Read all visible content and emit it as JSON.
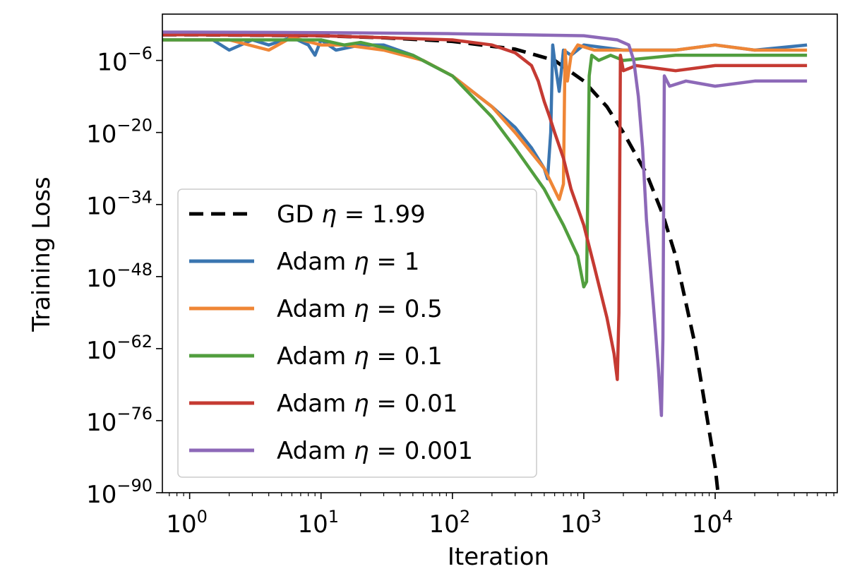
{
  "chart_data": {
    "type": "line",
    "title": "",
    "xlabel": "Iteration",
    "ylabel": "Training Loss",
    "xscale": "log",
    "yscale": "log",
    "xlim": [
      0.62,
      85000
    ],
    "ylim_exp": [
      -90,
      3
    ],
    "x_ticks": [
      {
        "value": 1,
        "base": "10",
        "exp": "0"
      },
      {
        "value": 10,
        "base": "10",
        "exp": "1"
      },
      {
        "value": 100,
        "base": "10",
        "exp": "2"
      },
      {
        "value": 1000,
        "base": "10",
        "exp": "3"
      },
      {
        "value": 10000,
        "base": "10",
        "exp": "4"
      }
    ],
    "y_ticks": [
      {
        "exp_value": -6,
        "base": "10",
        "exp": "−6"
      },
      {
        "exp_value": -20,
        "base": "10",
        "exp": "−20"
      },
      {
        "exp_value": -34,
        "base": "10",
        "exp": "−34"
      },
      {
        "exp_value": -48,
        "base": "10",
        "exp": "−48"
      },
      {
        "exp_value": -62,
        "base": "10",
        "exp": "−62"
      },
      {
        "exp_value": -76,
        "base": "10",
        "exp": "−76"
      },
      {
        "exp_value": -90,
        "base": "10",
        "exp": "−90"
      }
    ],
    "grid": false,
    "legend_position": "lower-left",
    "series": [
      {
        "key": "gd",
        "name": "GD",
        "param": "1.99",
        "color": "#000000",
        "dash": "dashed",
        "x": [
          0.62,
          1,
          10,
          30,
          100,
          300,
          600,
          1000,
          1500,
          2000,
          3000,
          4000,
          5000,
          7000,
          10000,
          10500
        ],
        "y_exp": [
          -1,
          -1,
          -1.2,
          -1.6,
          -2.3,
          -3.8,
          -6,
          -10,
          -15,
          -20,
          -28,
          -36,
          -44,
          -61,
          -85,
          -90
        ]
      },
      {
        "key": "adam1",
        "name": "Adam",
        "param": "1",
        "color": "#3a75b0",
        "dash": "solid",
        "x": [
          0.62,
          1,
          1.5,
          2,
          3,
          4,
          6,
          8,
          9,
          10,
          13,
          20,
          30,
          50,
          100,
          200,
          300,
          400,
          500,
          530,
          560,
          580,
          600,
          650,
          700,
          800,
          1000,
          2000,
          5000,
          10000,
          20000,
          50000
        ],
        "y_exp": [
          -2,
          -2,
          -2,
          -4,
          -2,
          -3,
          -1.5,
          -3,
          -5,
          -2,
          -4,
          -3,
          -3,
          -5,
          -9,
          -15,
          -19,
          -23,
          -27,
          -29,
          -20,
          -3,
          -6,
          -12,
          -4,
          -5,
          -3,
          -4,
          -4,
          -3,
          -4,
          -3
        ]
      },
      {
        "key": "adam05",
        "name": "Adam",
        "param": "0.5",
        "color": "#ef8636",
        "dash": "solid",
        "x": [
          0.62,
          1,
          2,
          4,
          6,
          10,
          15,
          30,
          60,
          100,
          200,
          300,
          500,
          650,
          700,
          720,
          750,
          800,
          900,
          1200,
          2000,
          5000,
          10000,
          20000,
          50000
        ],
        "y_exp": [
          -2,
          -2,
          -2,
          -4,
          -1.5,
          -3,
          -3,
          -4,
          -6,
          -9,
          -15,
          -20,
          -27,
          -33,
          -30,
          -4,
          -10,
          -5,
          -3,
          -4,
          -4,
          -4,
          -3,
          -4,
          -4
        ]
      },
      {
        "key": "adam01",
        "name": "Adam",
        "param": "0.1",
        "color": "#519e3e",
        "dash": "solid",
        "x": [
          0.62,
          1,
          2,
          5,
          10,
          15,
          20,
          30,
          50,
          100,
          200,
          300,
          500,
          700,
          900,
          1000,
          1050,
          1100,
          1150,
          1300,
          1600,
          2000,
          5000,
          10000,
          50000
        ],
        "y_exp": [
          -2,
          -2,
          -2,
          -2,
          -2,
          -3,
          -2.5,
          -3.5,
          -5,
          -9,
          -17,
          -23,
          -31,
          -38,
          -44,
          -50,
          -49,
          -9,
          -5,
          -6,
          -5,
          -6,
          -5,
          -5,
          -5
        ]
      },
      {
        "key": "adam001",
        "name": "Adam",
        "param": "0.01",
        "color": "#c53a32",
        "dash": "solid",
        "x": [
          0.62,
          1,
          10,
          100,
          200,
          300,
          400,
          450,
          500,
          550,
          600,
          700,
          800,
          1000,
          1200,
          1500,
          1700,
          1800,
          1850,
          1900,
          2000,
          2500,
          5000,
          10000,
          50000
        ],
        "y_exp": [
          -1,
          -1,
          -1.2,
          -2,
          -3,
          -4.5,
          -7,
          -10,
          -14,
          -17,
          -20,
          -25,
          -31,
          -38,
          -46,
          -56,
          -63,
          -68,
          -55,
          -5,
          -8,
          -7,
          -8,
          -7,
          -7
        ]
      },
      {
        "key": "adam0001",
        "name": "Adam",
        "param": "0.001",
        "color": "#8d69b8",
        "dash": "solid",
        "x": [
          0.62,
          1,
          10,
          100,
          1000,
          1800,
          2200,
          2400,
          2600,
          2800,
          3000,
          3400,
          3700,
          3900,
          4000,
          4100,
          4500,
          6000,
          10000,
          20000,
          50000
        ],
        "y_exp": [
          -0.5,
          -0.5,
          -0.6,
          -0.8,
          -1.2,
          -2,
          -3,
          -6,
          -13,
          -23,
          -37,
          -54,
          -66,
          -75,
          -60,
          -9,
          -11,
          -10,
          -11,
          -10,
          -10
        ]
      }
    ]
  }
}
